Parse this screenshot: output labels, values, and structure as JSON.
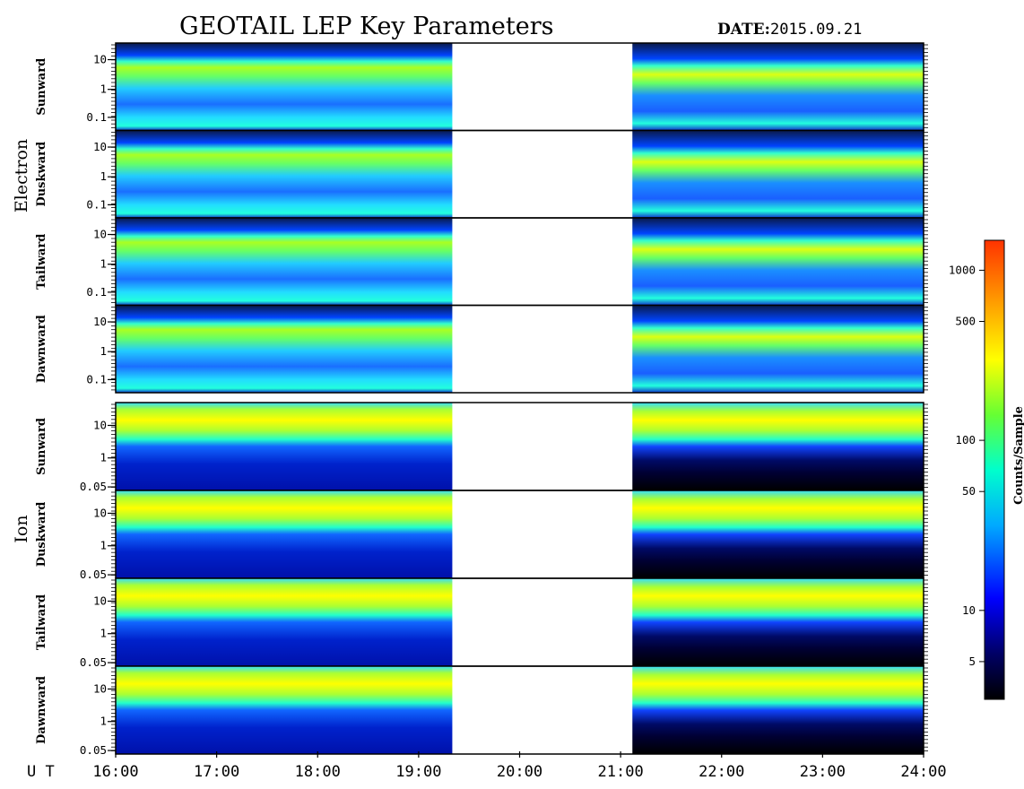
{
  "title": "GEOTAIL LEP Key Parameters",
  "date_label": "DATE:",
  "date_value": "2015.09.21",
  "chart_data": {
    "type": "heatmap",
    "x_axis": {
      "label": "U T",
      "range": [
        "16:00",
        "24:00"
      ],
      "ticks": [
        "16:00",
        "17:00",
        "18:00",
        "19:00",
        "20:00",
        "21:00",
        "22:00",
        "23:00",
        "24:00"
      ]
    },
    "data_gaps": [
      [
        "19:20",
        "21:07"
      ]
    ],
    "groups": [
      {
        "name": "Electron",
        "y_scale": "log",
        "y_ticks": [
          "10",
          "1",
          "0.1"
        ],
        "panels": [
          "Sunward",
          "Duskward",
          "Tailward",
          "Dawnward"
        ]
      },
      {
        "name": "Ion",
        "y_scale": "log",
        "y_ticks": [
          "10",
          "1",
          "0.05"
        ],
        "panels": [
          "Sunward",
          "Duskward",
          "Tailward",
          "Dawnward"
        ]
      }
    ],
    "colorbar": {
      "label": "Counts/Sample",
      "scale": "log",
      "range": [
        3,
        1500
      ],
      "ticks": [
        "1000",
        "500",
        "100",
        "50",
        "10",
        "5"
      ],
      "colors": [
        "#000000",
        "#000066",
        "#0000ff",
        "#00aaff",
        "#00ffcc",
        "#66ff33",
        "#ffff00",
        "#ff9900",
        "#ff3300"
      ]
    }
  }
}
